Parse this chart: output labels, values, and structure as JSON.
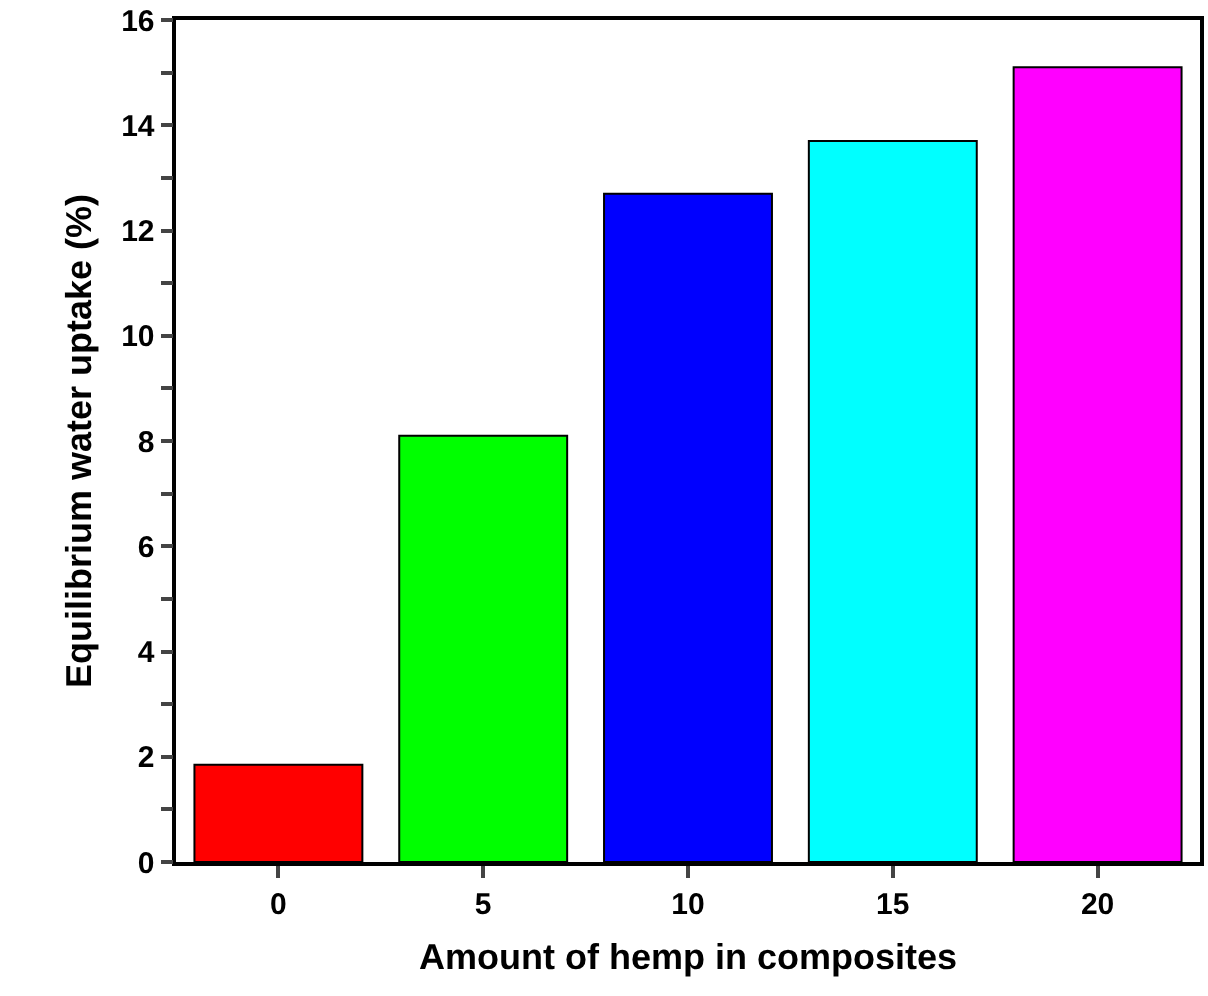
{
  "chart_data": {
    "type": "bar",
    "xlabel": "Amount of hemp in composites",
    "ylabel": "Equilibrium water uptake (%)",
    "categories": [
      "0",
      "5",
      "10",
      "15",
      "20"
    ],
    "values": [
      1.85,
      8.1,
      12.7,
      13.7,
      15.1
    ],
    "colors": [
      "#ff0000",
      "#00ff00",
      "#0000ff",
      "#00ffff",
      "#ff00ff"
    ],
    "ylim": [
      0,
      16
    ],
    "yticks": [
      0,
      {
        "value": 1,
        "label": null
      },
      2,
      {
        "value": 3,
        "label": null
      },
      4,
      {
        "value": 5,
        "label": null
      },
      6,
      {
        "value": 7,
        "label": null
      },
      8,
      {
        "value": 9,
        "label": null
      },
      10,
      {
        "value": 11,
        "label": null
      },
      12,
      {
        "value": 13,
        "label": null
      },
      14,
      {
        "value": 15,
        "label": null
      },
      16
    ],
    "grid": false
  }
}
